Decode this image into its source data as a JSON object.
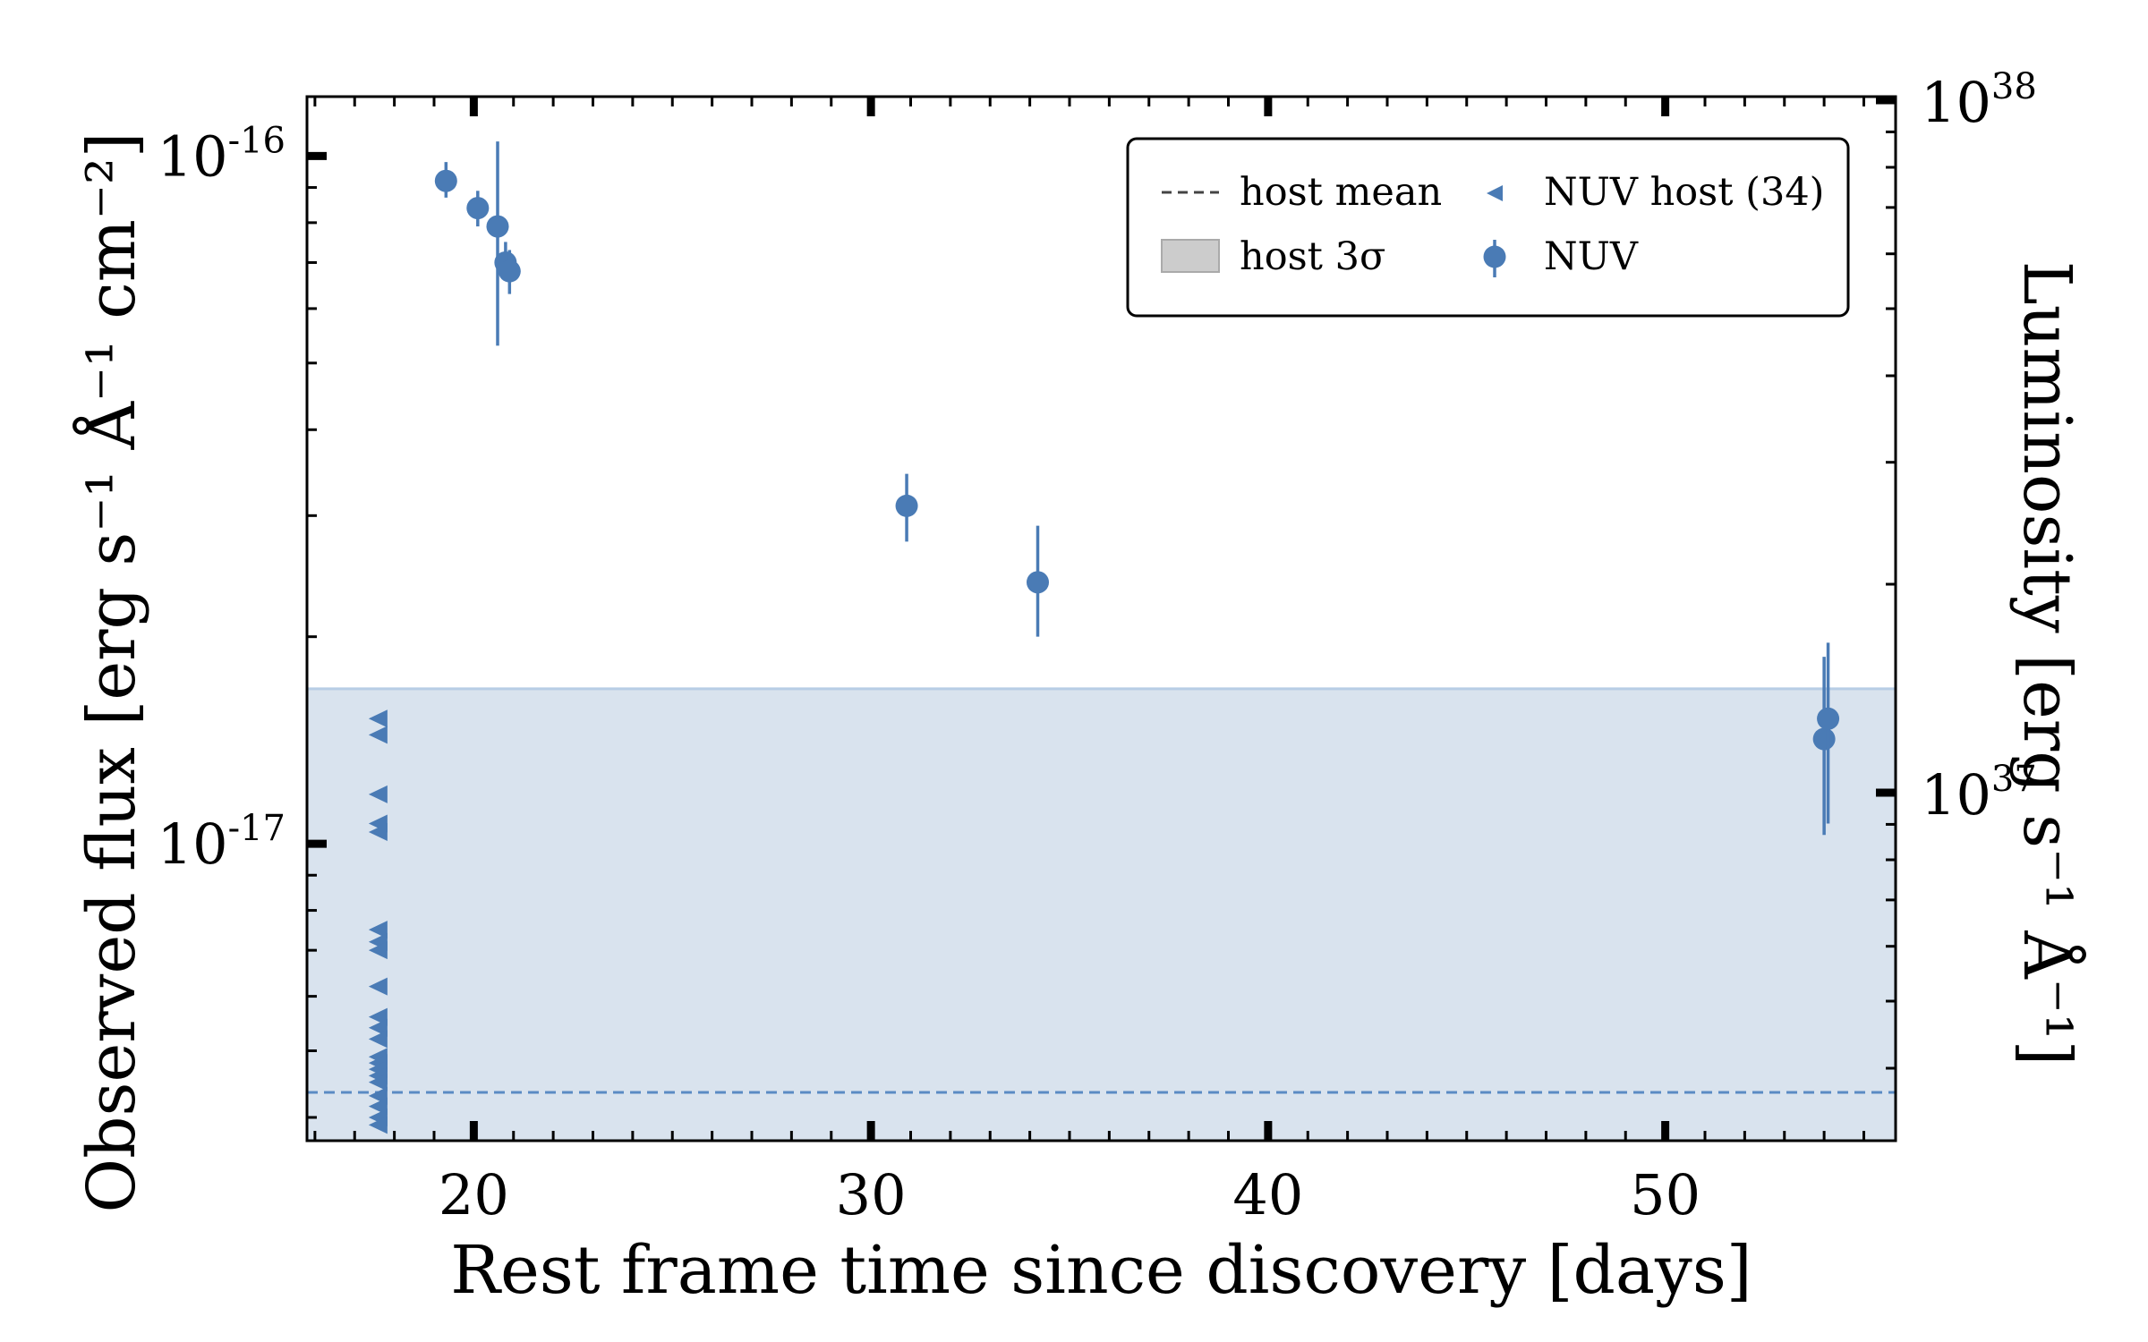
{
  "chart_data": {
    "type": "scatter",
    "xlabel": "Rest frame time since discovery [days]",
    "ylabel": "Observed flux [erg s⁻¹ Å⁻¹ cm⁻²]",
    "ylabel_right": "Luminosity [erg s⁻¹ Å⁻¹]",
    "xlim": [
      15.8,
      55.8
    ],
    "ylim": [
      3.7e-18,
      1.22e-16
    ],
    "yscale": "log",
    "x_ticks": [
      {
        "value": 20,
        "label": "20"
      },
      {
        "value": 30,
        "label": "30"
      },
      {
        "value": 40,
        "label": "40"
      },
      {
        "value": 50,
        "label": "50"
      }
    ],
    "y_ticks": [
      {
        "value": 1e-17,
        "base": "10",
        "exp": "-17"
      },
      {
        "value": 1e-16,
        "base": "10",
        "exp": "-16"
      }
    ],
    "y_right_ticks": [
      {
        "base": "10",
        "exp": "37"
      },
      {
        "base": "10",
        "exp": "38"
      }
    ],
    "host_mean": 4.35e-18,
    "host_3sigma_upper": 1.68e-17,
    "series": [
      {
        "name": "NUV",
        "marker": "circle",
        "points": [
          {
            "x": 19.3,
            "y": 9.2e-17,
            "lo": 8.7e-17,
            "hi": 9.8e-17
          },
          {
            "x": 20.1,
            "y": 8.4e-17,
            "lo": 7.9e-17,
            "hi": 8.9e-17
          },
          {
            "x": 20.6,
            "y": 7.9e-17,
            "lo": 5.3e-17,
            "hi": 1.05e-16
          },
          {
            "x": 20.8,
            "y": 7e-17,
            "lo": 6.6e-17,
            "hi": 7.5e-17
          },
          {
            "x": 20.9,
            "y": 6.8e-17,
            "lo": 6.3e-17,
            "hi": 7.3e-17
          },
          {
            "x": 30.9,
            "y": 3.1e-17,
            "lo": 2.75e-17,
            "hi": 3.45e-17
          },
          {
            "x": 34.2,
            "y": 2.4e-17,
            "lo": 2e-17,
            "hi": 2.9e-17
          },
          {
            "x": 54.0,
            "y": 1.42e-17,
            "lo": 1.03e-17,
            "hi": 1.87e-17
          },
          {
            "x": 54.1,
            "y": 1.52e-17,
            "lo": 1.07e-17,
            "hi": 1.96e-17
          }
        ]
      },
      {
        "name": "NUV host (34)",
        "marker": "triangle-left",
        "x": 17.6,
        "y_values": [
          1.52e-17,
          1.44e-17,
          1.18e-17,
          1.07e-17,
          1.04e-17,
          7.5e-18,
          7.2e-18,
          7e-18,
          6.2e-18,
          5.6e-18,
          5.4e-18,
          5.2e-18,
          4.9e-18,
          4.8e-18,
          4.7e-18,
          4.6e-18,
          4.5e-18,
          4.3e-18,
          4.15e-18,
          4e-18,
          3.9e-18
        ]
      }
    ],
    "legend": {
      "position": "top-right",
      "items": [
        {
          "label": "host mean",
          "symbol": "dashed-line"
        },
        {
          "label": "NUV host (34)",
          "symbol": "triangle-left"
        },
        {
          "label": "host 3σ",
          "symbol": "gray-patch"
        },
        {
          "label": "NUV",
          "symbol": "circle-errorbar"
        }
      ]
    },
    "colors": {
      "data": "#4a7bb5",
      "band_fill": "#d9e3ee",
      "band_edge": "#b7cde5",
      "mean_line": "#5b8bc4",
      "legend_patch": "#cccccc",
      "legend_dash": "#444444"
    },
    "grid": false
  }
}
